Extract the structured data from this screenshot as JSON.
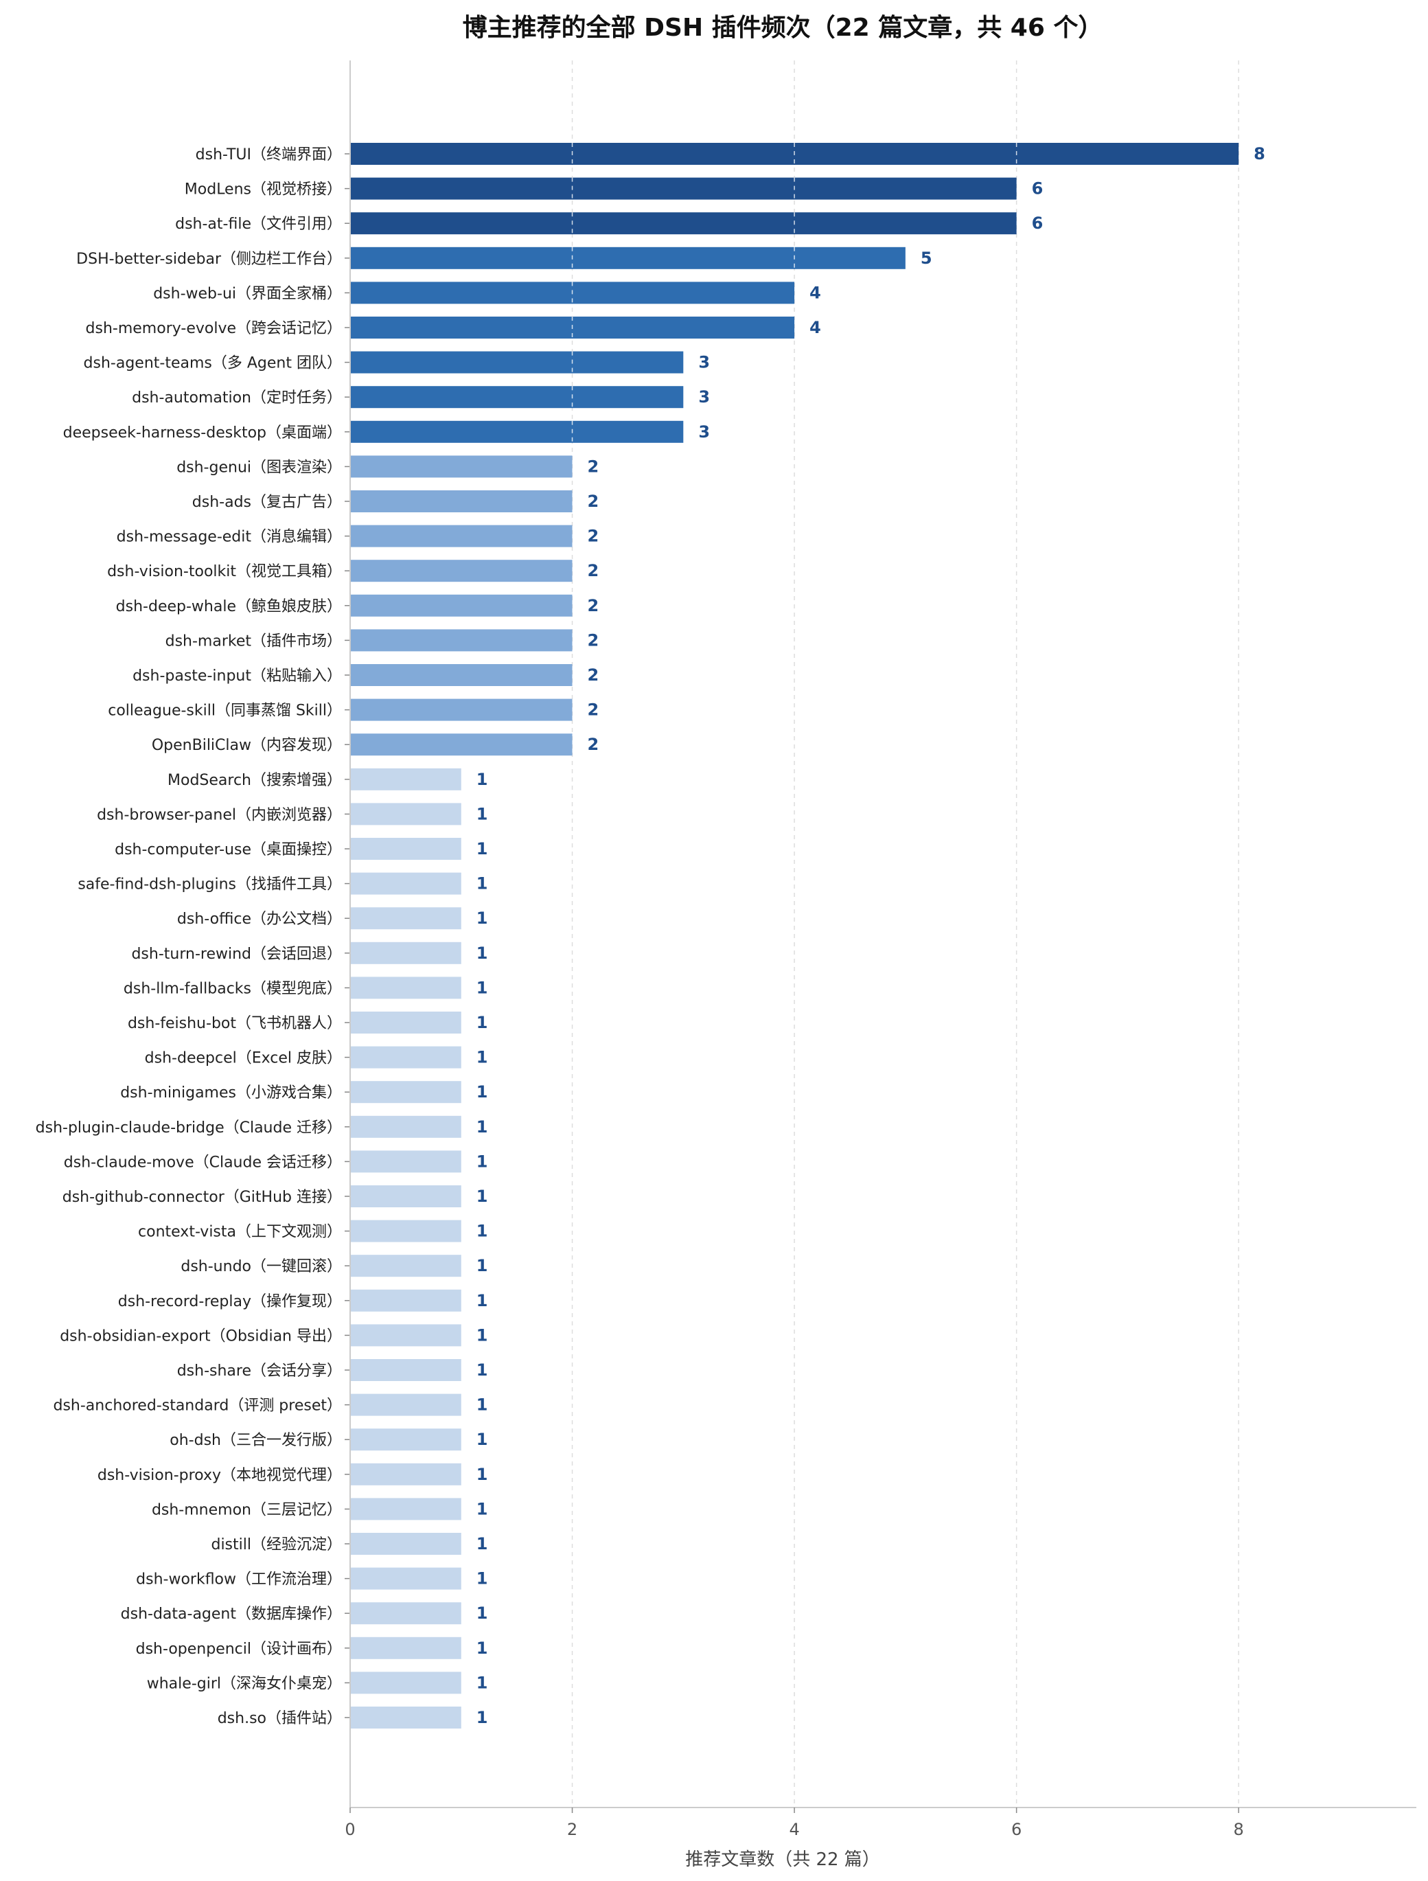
{
  "chart_data": {
    "type": "bar",
    "orientation": "horizontal",
    "title": "博主推荐的全部 DSH 插件频次（22 篇文章，共 46 个）",
    "xlabel": "推荐文章数（共 22 篇）",
    "ylabel": "",
    "xlim": [
      0,
      9.6
    ],
    "xticks": [
      0,
      2,
      4,
      6,
      8
    ],
    "grid": "vertical dashed",
    "categories": [
      "dsh-TUI（终端界面）",
      "ModLens（视觉桥接）",
      "dsh-at-file（文件引用）",
      "DSH-better-sidebar（侧边栏工作台）",
      "dsh-web-ui（界面全家桶）",
      "dsh-memory-evolve（跨会话记忆）",
      "dsh-agent-teams（多 Agent 团队）",
      "dsh-automation（定时任务）",
      "deepseek-harness-desktop（桌面端）",
      "dsh-genui（图表渲染）",
      "dsh-ads（复古广告）",
      "dsh-message-edit（消息编辑）",
      "dsh-vision-toolkit（视觉工具箱）",
      "dsh-deep-whale（鲸鱼娘皮肤）",
      "dsh-market（插件市场）",
      "dsh-paste-input（粘贴输入）",
      "colleague-skill（同事蒸馏 Skill）",
      "OpenBiliClaw（内容发现）",
      "ModSearch（搜索增强）",
      "dsh-browser-panel（内嵌浏览器）",
      "dsh-computer-use（桌面操控）",
      "safe-find-dsh-plugins（找插件工具）",
      "dsh-office（办公文档）",
      "dsh-turn-rewind（会话回退）",
      "dsh-llm-fallbacks（模型兜底）",
      "dsh-feishu-bot（飞书机器人）",
      "dsh-deepcel（Excel 皮肤）",
      "dsh-minigames（小游戏合集）",
      "dsh-plugin-claude-bridge（Claude 迁移）",
      "dsh-claude-move（Claude 会话迁移）",
      "dsh-github-connector（GitHub 连接）",
      "context-vista（上下文观测）",
      "dsh-undo（一键回滚）",
      "dsh-record-replay（操作复现）",
      "dsh-obsidian-export（Obsidian 导出）",
      "dsh-share（会话分享）",
      "dsh-anchored-standard（评测 preset）",
      "oh-dsh（三合一发行版）",
      "dsh-vision-proxy（本地视觉代理）",
      "dsh-mnemon（三层记忆）",
      "distill（经验沉淀）",
      "dsh-workflow（工作流治理）",
      "dsh-data-agent（数据库操作）",
      "dsh-openpencil（设计画布）",
      "whale-girl（深海女仆桌宠）",
      "dsh.so（插件站）"
    ],
    "values": [
      8,
      6,
      6,
      5,
      4,
      4,
      3,
      3,
      3,
      2,
      2,
      2,
      2,
      2,
      2,
      2,
      2,
      2,
      1,
      1,
      1,
      1,
      1,
      1,
      1,
      1,
      1,
      1,
      1,
      1,
      1,
      1,
      1,
      1,
      1,
      1,
      1,
      1,
      1,
      1,
      1,
      1,
      1,
      1,
      1,
      1
    ],
    "colors": {
      "ge6": "#1f4e8c",
      "ge3": "#2e6db0",
      "eq2": "#82aad8",
      "eq1": "#c5d7ec",
      "value_text": "#1f4e8c",
      "grid": "#dddddd",
      "axis": "#cccccc"
    }
  }
}
